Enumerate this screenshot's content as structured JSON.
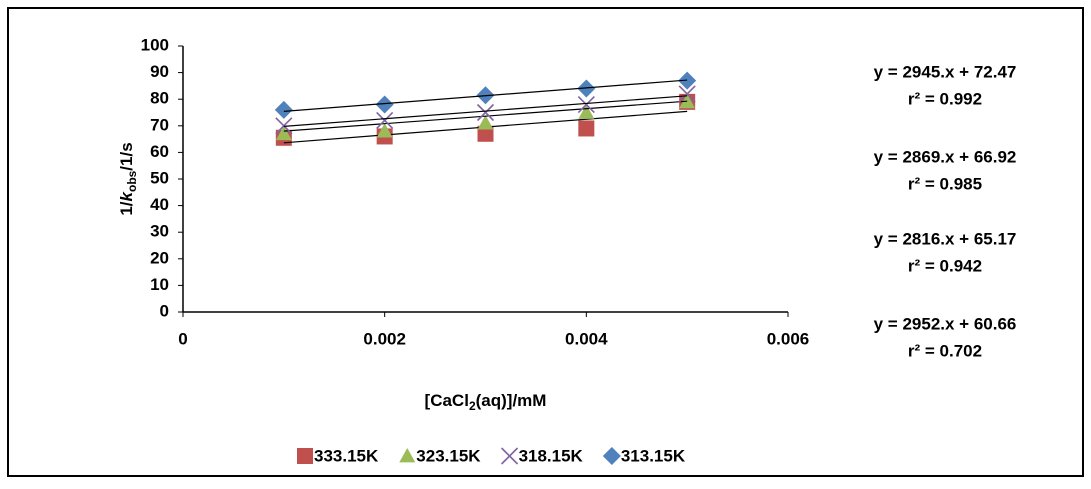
{
  "chart_data": {
    "type": "scatter",
    "xlabel": [
      "[CaCl",
      "2",
      "(aq)]/mM"
    ],
    "ylabel": [
      "1/",
      "k",
      "obs",
      "/1/s"
    ],
    "xlim": [
      0,
      0.006
    ],
    "xticks": [
      0,
      0.002,
      0.004,
      0.006
    ],
    "ylim": [
      0,
      100
    ],
    "yticks": [
      0,
      10,
      20,
      30,
      40,
      50,
      60,
      70,
      80,
      90,
      100
    ],
    "x": [
      0.001,
      0.002,
      0.003,
      0.004,
      0.005
    ],
    "series": [
      {
        "name": "333.15K",
        "color": "#c0504d",
        "marker": "square",
        "values": [
          65.5,
          66,
          67,
          69,
          79
        ],
        "trendline": {
          "slope": 2952,
          "intercept": 60.66,
          "label": "y = 2952.x + 60.66",
          "r2_label": "r² = 0.702"
        }
      },
      {
        "name": "323.15K",
        "color": "#9bbb59",
        "marker": "triangle",
        "values": [
          67,
          68,
          71,
          75,
          79
        ],
        "trendline": {
          "slope": 2816,
          "intercept": 65.17,
          "label": "y = 2816.x + 65.17",
          "r2_label": "r² = 0.942"
        }
      },
      {
        "name": "318.15K",
        "color": "#8064a2",
        "marker": "x",
        "values": [
          70,
          72,
          75,
          78,
          82
        ],
        "trendline": {
          "slope": 2869,
          "intercept": 66.92,
          "label": "y = 2869.x + 66.92",
          "r2_label": "r² = 0.985"
        }
      },
      {
        "name": "313.15K",
        "color": "#4f81bd",
        "marker": "diamond",
        "values": [
          76,
          78,
          81.5,
          84,
          87
        ],
        "trendline": {
          "slope": 2945,
          "intercept": 72.47,
          "label": "y = 2945.x + 72.47",
          "r2_label": "r² = 0.992"
        }
      }
    ]
  }
}
